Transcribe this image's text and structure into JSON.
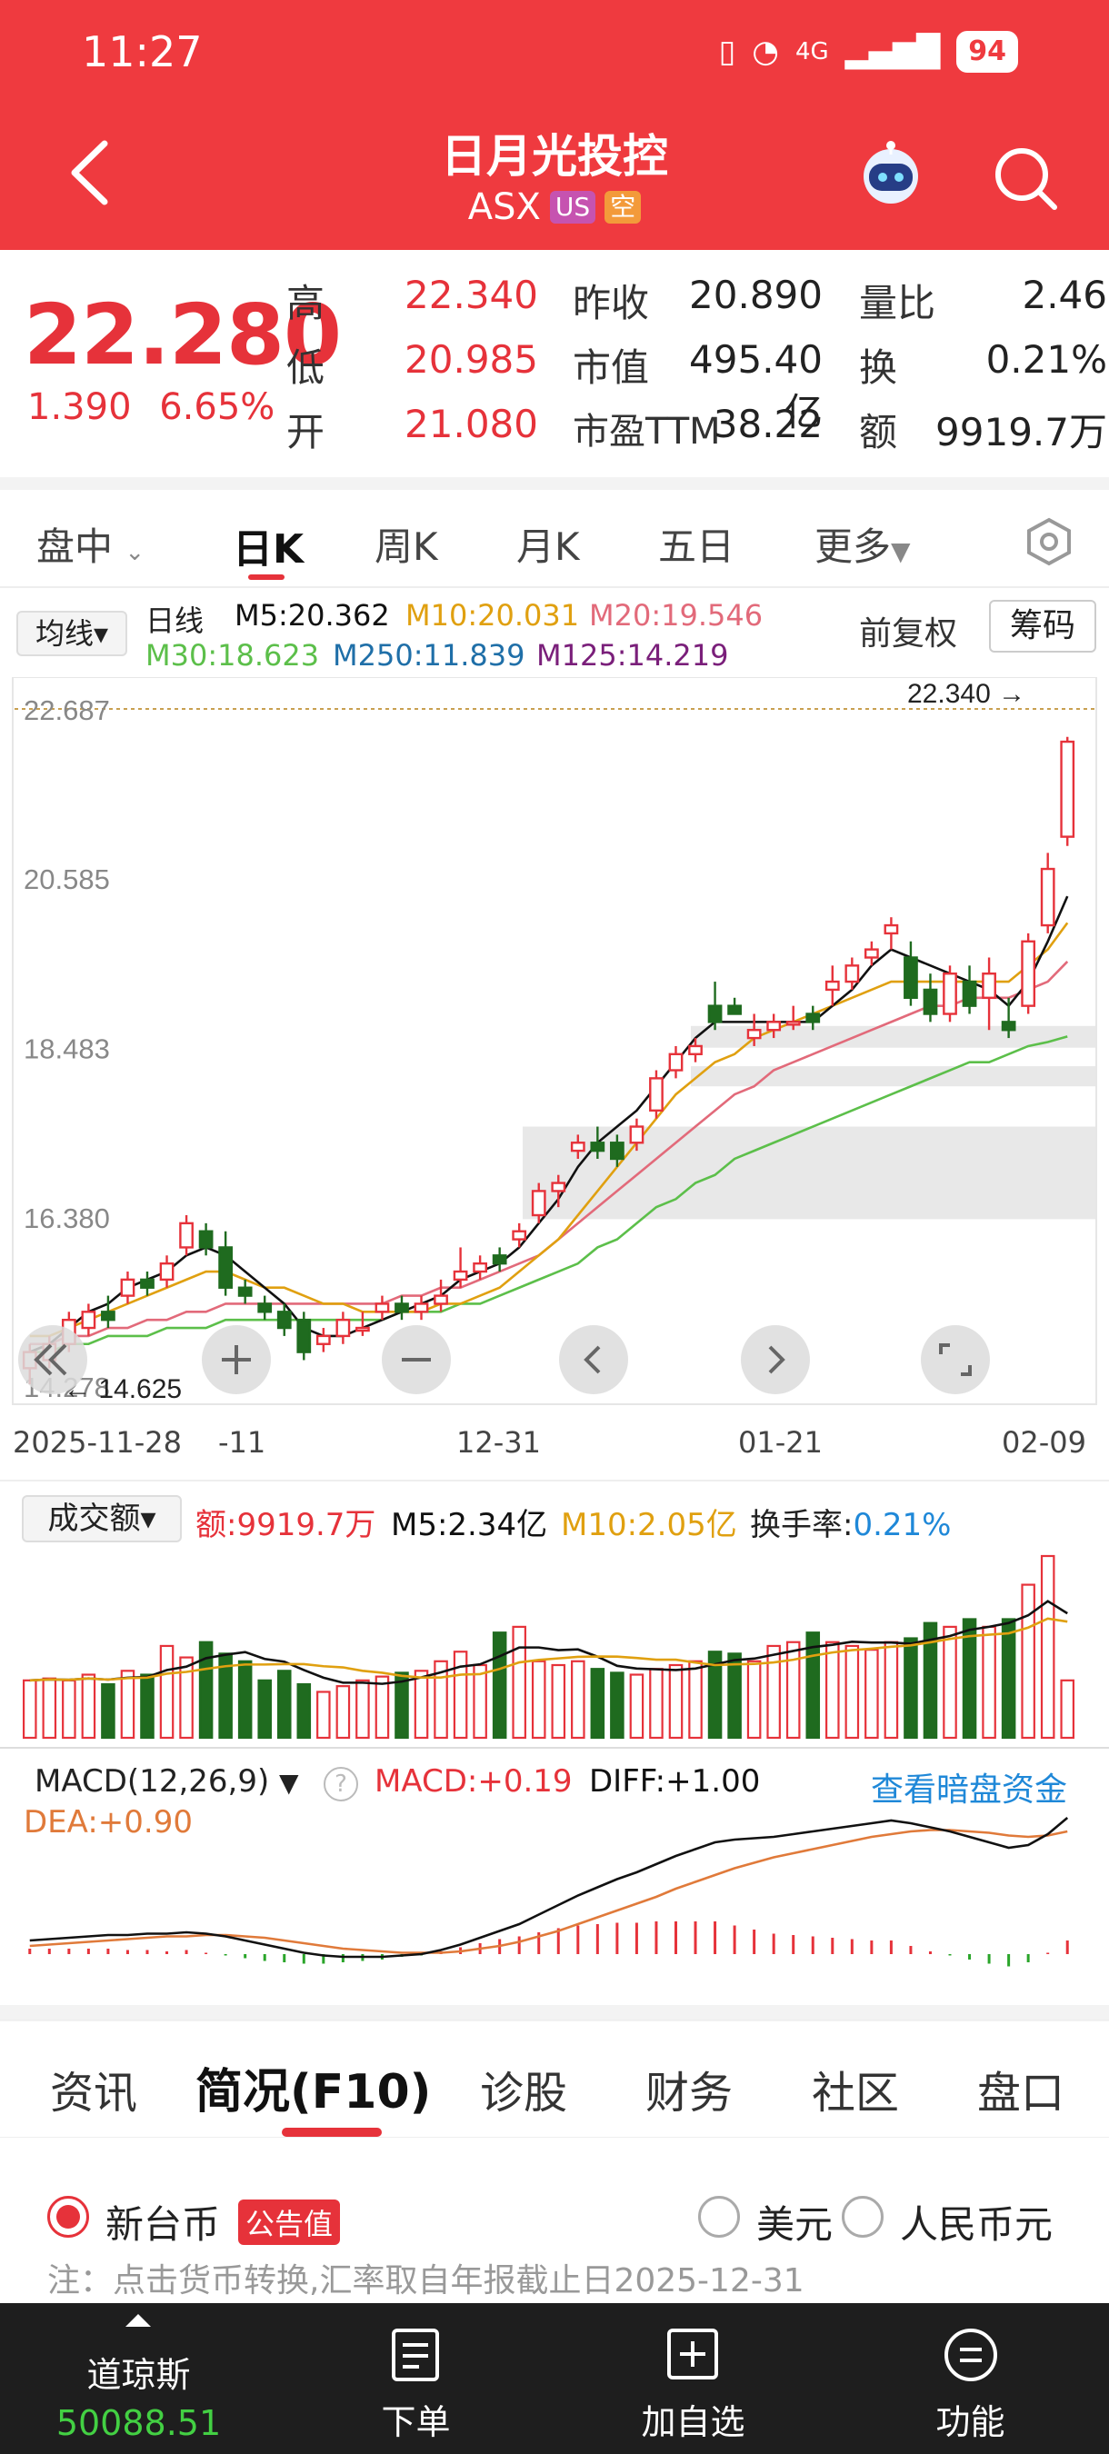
{
  "status": {
    "time": "11:27",
    "battery": "94",
    "network": "4G"
  },
  "header": {
    "title": "日月光投控",
    "ticker": "ASX",
    "tag_us": "US",
    "tag_short": "空"
  },
  "quote": {
    "price": "22.280",
    "change": "1.390",
    "change_pct": "6.65%",
    "high_label": "高",
    "high": "22.340",
    "low_label": "低",
    "low": "20.985",
    "open_label": "开",
    "open": "21.080",
    "prev_close_label": "昨收",
    "prev_close": "20.890",
    "mktcap_label": "市值",
    "mktcap": "495.40亿",
    "pe_label": "市盈TTM",
    "pe": "38.22",
    "vol_ratio_label": "量比",
    "vol_ratio": "2.46",
    "turnover_label": "换",
    "turnover": "0.21%",
    "amount_label": "额",
    "amount": "9919.7万"
  },
  "period_tabs": [
    "盘中",
    "日K",
    "周K",
    "月K",
    "五日",
    "更多"
  ],
  "active_period": "日K",
  "indicators": {
    "ma_selector": "均线",
    "kind": "日线",
    "m5": "M5:20.362",
    "m10": "M10:20.031",
    "m20": "M20:19.546",
    "m30": "M30:18.623",
    "m250": "M250:11.839",
    "m125": "M125:14.219",
    "adjust": "前复权",
    "chips": "筹码"
  },
  "colors": {
    "up": "#e6323a",
    "down": "#1f6b1f",
    "m5": "#111111",
    "m10": "#e0a010",
    "m20": "#e26a7a",
    "m30": "#5cbf4a",
    "accent_blue": "#1f88d8"
  },
  "price_chart": {
    "y_ticks": [
      "22.687",
      "20.585",
      "18.483",
      "16.380",
      "14.278"
    ],
    "high_mark": "22.340",
    "low_mark": "14.625",
    "x_ticks": [
      "2025-11-28",
      "-11",
      "12-31",
      "01-21",
      "02-09"
    ]
  },
  "volume": {
    "selector": "成交额",
    "amount": "额:9919.7万",
    "m5": "M5:2.34亿",
    "m10": "M10:2.05亿",
    "turnover_label": "换手率:",
    "turnover": "0.21%"
  },
  "macd": {
    "selector": "MACD(12,26,9)",
    "macd": "MACD:+0.19",
    "diff": "DIFF:+1.00",
    "dea": "DEA:+0.90",
    "dark_pool": "查看暗盘资金"
  },
  "chart_data": {
    "type": "candlestick",
    "title": "",
    "ylim": [
      14.278,
      22.687
    ],
    "candles": [
      {
        "o": 14.5,
        "h": 14.8,
        "l": 14.3,
        "c": 14.7
      },
      {
        "o": 14.6,
        "h": 14.9,
        "l": 14.5,
        "c": 14.8
      },
      {
        "o": 14.8,
        "h": 15.2,
        "l": 14.7,
        "c": 15.1
      },
      {
        "o": 15.0,
        "h": 15.3,
        "l": 14.9,
        "c": 15.2
      },
      {
        "o": 15.2,
        "h": 15.4,
        "l": 15.0,
        "c": 15.1
      },
      {
        "o": 15.4,
        "h": 15.7,
        "l": 15.3,
        "c": 15.6
      },
      {
        "o": 15.6,
        "h": 15.7,
        "l": 15.4,
        "c": 15.5
      },
      {
        "o": 15.6,
        "h": 15.9,
        "l": 15.5,
        "c": 15.8
      },
      {
        "o": 16.0,
        "h": 16.4,
        "l": 15.9,
        "c": 16.3
      },
      {
        "o": 16.2,
        "h": 16.3,
        "l": 15.9,
        "c": 16.0
      },
      {
        "o": 16.0,
        "h": 16.2,
        "l": 15.4,
        "c": 15.5
      },
      {
        "o": 15.5,
        "h": 15.6,
        "l": 15.3,
        "c": 15.4
      },
      {
        "o": 15.3,
        "h": 15.4,
        "l": 15.1,
        "c": 15.2
      },
      {
        "o": 15.2,
        "h": 15.3,
        "l": 14.9,
        "c": 15.0
      },
      {
        "o": 15.1,
        "h": 15.2,
        "l": 14.6,
        "c": 14.7
      },
      {
        "o": 14.8,
        "h": 15.0,
        "l": 14.7,
        "c": 14.9
      },
      {
        "o": 14.9,
        "h": 15.2,
        "l": 14.8,
        "c": 15.1
      },
      {
        "o": 15.0,
        "h": 15.2,
        "l": 14.9,
        "c": 15.0
      },
      {
        "o": 15.2,
        "h": 15.4,
        "l": 15.1,
        "c": 15.3
      },
      {
        "o": 15.3,
        "h": 15.4,
        "l": 15.1,
        "c": 15.2
      },
      {
        "o": 15.2,
        "h": 15.4,
        "l": 15.1,
        "c": 15.3
      },
      {
        "o": 15.3,
        "h": 15.6,
        "l": 15.2,
        "c": 15.4
      },
      {
        "o": 15.6,
        "h": 16.0,
        "l": 15.5,
        "c": 15.7
      },
      {
        "o": 15.7,
        "h": 15.9,
        "l": 15.6,
        "c": 15.8
      },
      {
        "o": 15.9,
        "h": 16.0,
        "l": 15.7,
        "c": 15.8
      },
      {
        "o": 16.1,
        "h": 16.3,
        "l": 16.0,
        "c": 16.2
      },
      {
        "o": 16.4,
        "h": 16.8,
        "l": 16.3,
        "c": 16.7
      },
      {
        "o": 16.7,
        "h": 16.9,
        "l": 16.5,
        "c": 16.8
      },
      {
        "o": 17.2,
        "h": 17.4,
        "l": 17.1,
        "c": 17.3
      },
      {
        "o": 17.3,
        "h": 17.5,
        "l": 17.1,
        "c": 17.2
      },
      {
        "o": 17.3,
        "h": 17.4,
        "l": 17.0,
        "c": 17.1
      },
      {
        "o": 17.3,
        "h": 17.6,
        "l": 17.2,
        "c": 17.5
      },
      {
        "o": 17.7,
        "h": 18.2,
        "l": 17.6,
        "c": 18.1
      },
      {
        "o": 18.2,
        "h": 18.5,
        "l": 18.1,
        "c": 18.4
      },
      {
        "o": 18.4,
        "h": 18.6,
        "l": 18.3,
        "c": 18.5
      },
      {
        "o": 19.0,
        "h": 19.3,
        "l": 18.7,
        "c": 18.8
      },
      {
        "o": 19.0,
        "h": 19.1,
        "l": 18.9,
        "c": 18.9
      },
      {
        "o": 18.6,
        "h": 18.9,
        "l": 18.5,
        "c": 18.7
      },
      {
        "o": 18.7,
        "h": 18.9,
        "l": 18.6,
        "c": 18.8
      },
      {
        "o": 18.8,
        "h": 19.0,
        "l": 18.7,
        "c": 18.8
      },
      {
        "o": 18.9,
        "h": 19.0,
        "l": 18.7,
        "c": 18.8
      },
      {
        "o": 19.2,
        "h": 19.5,
        "l": 19.0,
        "c": 19.3
      },
      {
        "o": 19.3,
        "h": 19.6,
        "l": 19.2,
        "c": 19.5
      },
      {
        "o": 19.6,
        "h": 19.8,
        "l": 19.5,
        "c": 19.7
      },
      {
        "o": 19.9,
        "h": 20.1,
        "l": 19.7,
        "c": 20.0
      },
      {
        "o": 19.6,
        "h": 19.8,
        "l": 19.0,
        "c": 19.1
      },
      {
        "o": 19.2,
        "h": 19.4,
        "l": 18.8,
        "c": 18.9
      },
      {
        "o": 18.9,
        "h": 19.5,
        "l": 18.8,
        "c": 19.4
      },
      {
        "o": 19.3,
        "h": 19.5,
        "l": 18.9,
        "c": 19.0
      },
      {
        "o": 19.1,
        "h": 19.6,
        "l": 18.7,
        "c": 19.4
      },
      {
        "o": 18.8,
        "h": 19.1,
        "l": 18.6,
        "c": 18.7
      },
      {
        "o": 19.0,
        "h": 19.9,
        "l": 18.9,
        "c": 19.8
      },
      {
        "o": 20.0,
        "h": 20.9,
        "l": 19.9,
        "c": 20.7
      },
      {
        "o": 21.1,
        "h": 22.34,
        "l": 20.985,
        "c": 22.28
      }
    ],
    "ma5": [
      14.7,
      14.8,
      15.0,
      15.2,
      15.3,
      15.5,
      15.6,
      15.7,
      15.9,
      16.0,
      15.9,
      15.7,
      15.5,
      15.3,
      15.0,
      14.9,
      14.9,
      15.0,
      15.1,
      15.2,
      15.3,
      15.4,
      15.6,
      15.7,
      15.8,
      16.0,
      16.3,
      16.6,
      17.0,
      17.3,
      17.5,
      17.7,
      18.0,
      18.3,
      18.6,
      18.8,
      18.8,
      18.8,
      18.8,
      18.8,
      18.8,
      19.0,
      19.2,
      19.5,
      19.7,
      19.6,
      19.5,
      19.4,
      19.3,
      19.2,
      19.0,
      19.3,
      19.8,
      20.36
    ],
    "ma10": [
      14.9,
      14.9,
      15.0,
      15.1,
      15.2,
      15.3,
      15.4,
      15.5,
      15.6,
      15.7,
      15.7,
      15.6,
      15.5,
      15.5,
      15.4,
      15.3,
      15.3,
      15.2,
      15.2,
      15.2,
      15.2,
      15.3,
      15.3,
      15.4,
      15.5,
      15.7,
      15.9,
      16.1,
      16.4,
      16.7,
      17.0,
      17.3,
      17.6,
      17.9,
      18.1,
      18.3,
      18.4,
      18.6,
      18.7,
      18.8,
      18.9,
      19.0,
      19.1,
      19.2,
      19.3,
      19.3,
      19.3,
      19.3,
      19.3,
      19.3,
      19.3,
      19.5,
      19.7,
      20.03
    ],
    "ma20": [
      14.8,
      14.8,
      14.9,
      14.9,
      15.0,
      15.0,
      15.1,
      15.1,
      15.2,
      15.2,
      15.3,
      15.3,
      15.3,
      15.3,
      15.3,
      15.3,
      15.3,
      15.3,
      15.3,
      15.4,
      15.4,
      15.5,
      15.5,
      15.6,
      15.7,
      15.8,
      15.9,
      16.1,
      16.3,
      16.5,
      16.7,
      16.9,
      17.1,
      17.3,
      17.5,
      17.7,
      17.9,
      18.0,
      18.2,
      18.3,
      18.4,
      18.5,
      18.6,
      18.7,
      18.8,
      18.9,
      19.0,
      19.0,
      19.1,
      19.1,
      19.1,
      19.2,
      19.3,
      19.55
    ],
    "ma30": [
      14.7,
      14.7,
      14.8,
      14.8,
      14.9,
      14.9,
      14.9,
      15.0,
      15.0,
      15.0,
      15.1,
      15.1,
      15.1,
      15.1,
      15.1,
      15.1,
      15.1,
      15.1,
      15.1,
      15.2,
      15.2,
      15.2,
      15.3,
      15.3,
      15.4,
      15.5,
      15.6,
      15.7,
      15.8,
      16.0,
      16.1,
      16.3,
      16.5,
      16.6,
      16.8,
      16.9,
      17.1,
      17.2,
      17.3,
      17.4,
      17.5,
      17.6,
      17.7,
      17.8,
      17.9,
      18.0,
      18.1,
      18.2,
      18.3,
      18.3,
      18.4,
      18.5,
      18.55,
      18.62
    ],
    "volume": [
      30,
      31,
      30,
      33,
      28,
      35,
      33,
      48,
      42,
      50,
      44,
      40,
      30,
      35,
      28,
      24,
      27,
      30,
      32,
      34,
      35,
      40,
      45,
      38,
      55,
      58,
      40,
      38,
      40,
      36,
      34,
      33,
      36,
      38,
      40,
      45,
      44,
      40,
      48,
      50,
      55,
      50,
      48,
      46,
      50,
      52,
      60,
      58,
      62,
      58,
      62,
      80,
      95,
      30
    ],
    "macd_dif": [
      0.1,
      0.11,
      0.12,
      0.13,
      0.14,
      0.14,
      0.15,
      0.15,
      0.16,
      0.15,
      0.13,
      0.1,
      0.07,
      0.04,
      0.01,
      -0.01,
      -0.02,
      -0.02,
      -0.02,
      -0.01,
      0.0,
      0.03,
      0.07,
      0.12,
      0.17,
      0.22,
      0.29,
      0.36,
      0.43,
      0.49,
      0.55,
      0.6,
      0.66,
      0.72,
      0.77,
      0.82,
      0.84,
      0.85,
      0.86,
      0.88,
      0.9,
      0.92,
      0.94,
      0.96,
      0.98,
      0.96,
      0.93,
      0.9,
      0.86,
      0.82,
      0.78,
      0.8,
      0.88,
      1.0
    ],
    "macd_dea": [
      0.06,
      0.07,
      0.08,
      0.09,
      0.1,
      0.11,
      0.12,
      0.13,
      0.13,
      0.14,
      0.14,
      0.13,
      0.12,
      0.1,
      0.08,
      0.06,
      0.04,
      0.03,
      0.02,
      0.01,
      0.01,
      0.01,
      0.02,
      0.04,
      0.06,
      0.09,
      0.13,
      0.17,
      0.22,
      0.27,
      0.32,
      0.37,
      0.42,
      0.48,
      0.53,
      0.58,
      0.63,
      0.67,
      0.71,
      0.74,
      0.77,
      0.8,
      0.83,
      0.86,
      0.88,
      0.9,
      0.91,
      0.91,
      0.9,
      0.89,
      0.87,
      0.86,
      0.87,
      0.9
    ]
  },
  "info_tabs": [
    "资讯",
    "简况(F10)",
    "诊股",
    "财务",
    "社区",
    "盘口"
  ],
  "active_info_tab": "简况(F10)",
  "currency": {
    "opt1": "新台币",
    "badge": "公告值",
    "opt2": "美元",
    "opt3": "人民币元",
    "note": "注：点击货币转换,汇率取自年报截止日2025-12-31"
  },
  "bottom_nav": {
    "index_name": "道琼斯",
    "index_value": "50088.51",
    "order": "下单",
    "add_watch": "加自选",
    "func": "功能"
  }
}
